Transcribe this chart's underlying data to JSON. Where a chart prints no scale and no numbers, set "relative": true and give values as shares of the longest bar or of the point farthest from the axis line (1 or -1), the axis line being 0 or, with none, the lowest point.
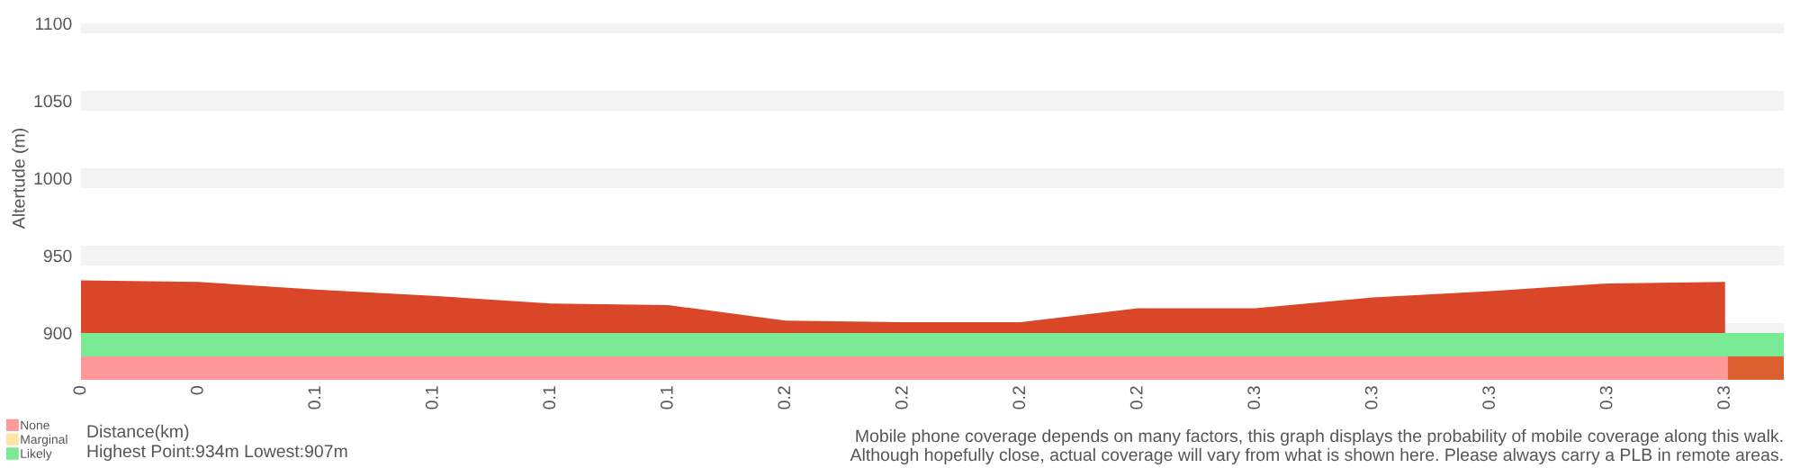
{
  "chart_data": [
    {
      "type": "area",
      "ylabel": "Altertude (m)",
      "xlabel": "Distance(km)",
      "categories": [
        "0",
        "0",
        "0.1",
        "0.1",
        "0.1",
        "0.1",
        "0.2",
        "0.2",
        "0.2",
        "0.2",
        "0.3",
        "0.3",
        "0.3",
        "0.3",
        "0.3"
      ],
      "values": [
        934,
        933,
        928,
        924,
        919,
        918,
        908,
        907,
        907,
        916,
        916,
        923,
        927,
        932,
        933
      ],
      "color": "#d94628",
      "ylim": [
        900,
        1100
      ],
      "yticks": [
        900,
        950,
        1000,
        1050,
        1100
      ],
      "grid": "y",
      "annotations": [
        "Highest Point:934m Lowest:907m",
        "Mobile phone coverage depends on many factors, this graph displays the probability of mobile coverage along this walk.\nAlthough hopefully close, actual coverage will vary from what is shown here. Please always carry a PLB in remote areas."
      ]
    },
    {
      "type": "bar",
      "orientation": "horizontal",
      "stacked": true,
      "relative": true,
      "categories": [
        null,
        null
      ],
      "legend": "bottom left",
      "series": [
        {
          "name": "None",
          "color": "#ff9999",
          "values": [
            0,
            0.967
          ]
        },
        {
          "name": "Marginal",
          "color": "#ffe4a8",
          "values": [
            0,
            0
          ]
        },
        {
          "name": "Likely",
          "color": "#7aea94",
          "values": [
            1,
            0
          ]
        },
        {
          "color": "#dd6030",
          "values": [
            0,
            0.033
          ]
        }
      ]
    }
  ]
}
